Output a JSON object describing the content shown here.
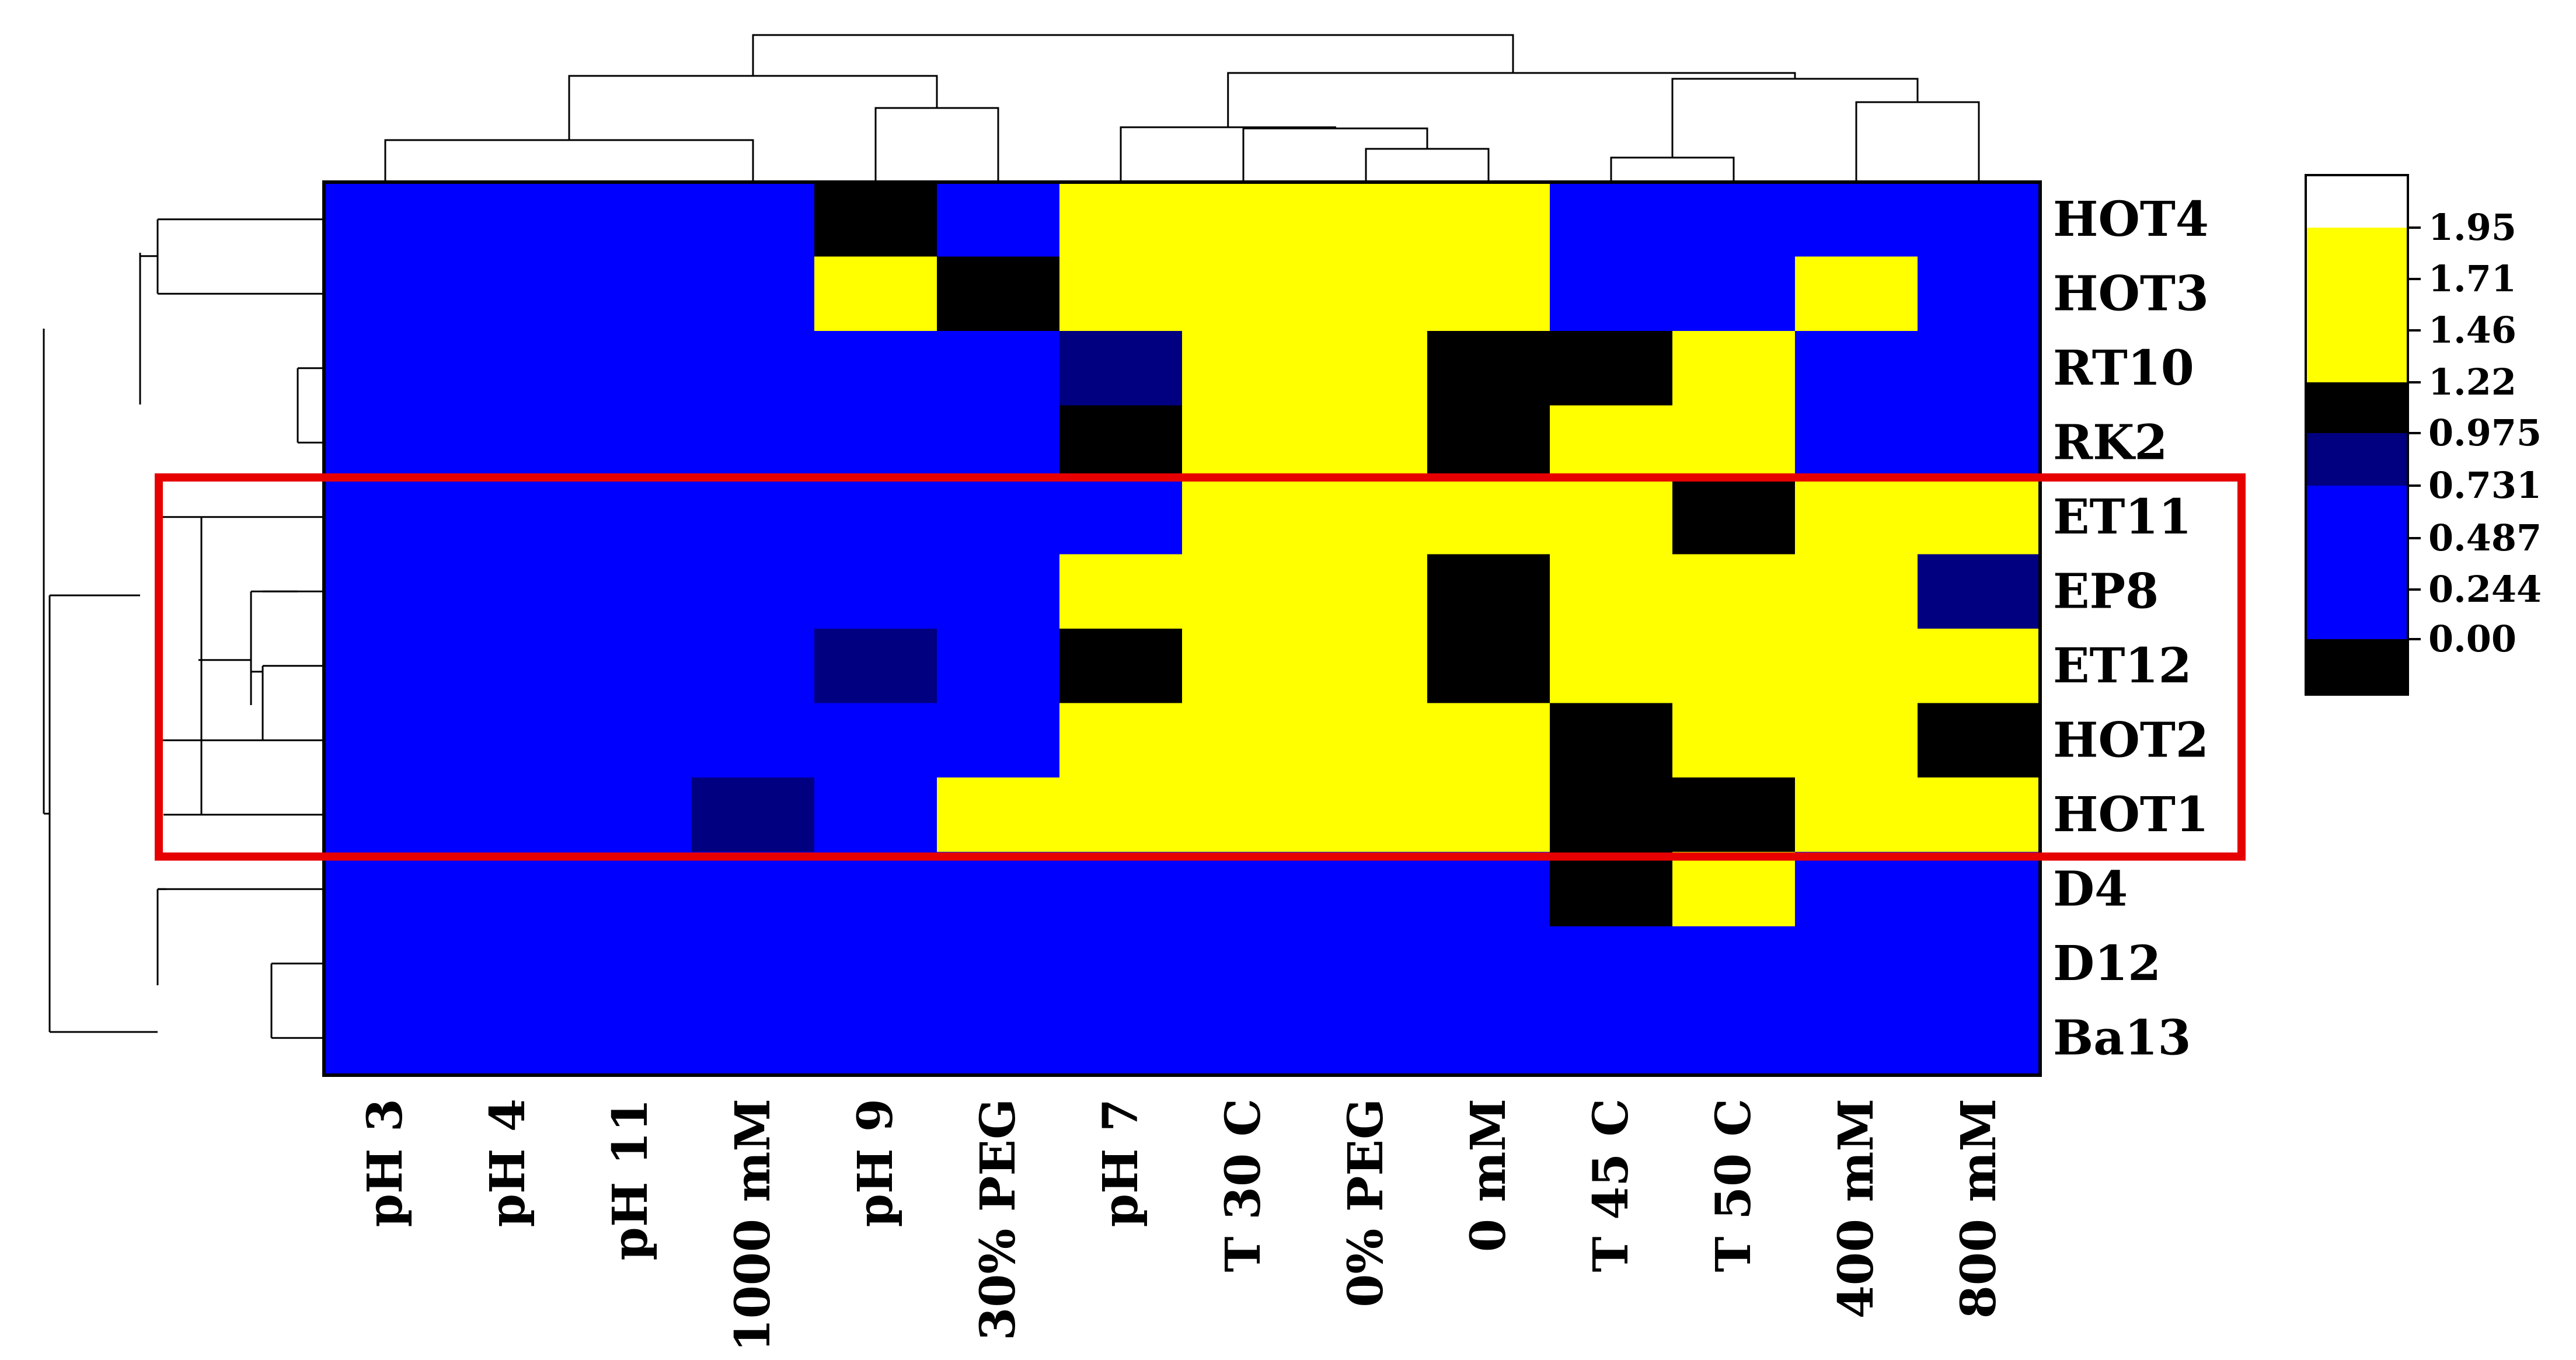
{
  "chart_data": {
    "type": "heatmap",
    "rows": [
      "HOT4",
      "HOT3",
      "RT10",
      "RK2",
      "ET11",
      "EP8",
      "ET12",
      "HOT2",
      "HOT1",
      "D4",
      "D12",
      "Ba13"
    ],
    "columns": [
      "pH 3",
      "pH 4",
      "pH 11",
      "1000 mM",
      "pH 9",
      "30% PEG",
      "pH 7",
      "T 30 C",
      "0% PEG",
      "0 mM",
      "T 45 C",
      "T 50 C",
      "400 mM",
      "800 mM"
    ],
    "values": [
      [
        0.36,
        0.36,
        0.36,
        0.36,
        1.1,
        0.36,
        1.58,
        1.58,
        1.58,
        1.58,
        0.36,
        0.36,
        0.36,
        0.36
      ],
      [
        0.36,
        0.36,
        0.36,
        0.36,
        1.58,
        1.1,
        1.58,
        1.58,
        1.58,
        1.58,
        0.36,
        0.36,
        1.58,
        0.36
      ],
      [
        0.36,
        0.36,
        0.36,
        0.36,
        0.36,
        0.36,
        0.85,
        1.58,
        1.58,
        1.1,
        1.1,
        1.58,
        0.36,
        0.36
      ],
      [
        0.36,
        0.36,
        0.36,
        0.36,
        0.36,
        0.36,
        1.1,
        1.58,
        1.58,
        1.1,
        1.58,
        1.58,
        0.36,
        0.36
      ],
      [
        0.36,
        0.36,
        0.36,
        0.36,
        0.36,
        0.36,
        0.36,
        1.58,
        1.58,
        1.58,
        1.58,
        1.1,
        1.58,
        1.58
      ],
      [
        0.36,
        0.36,
        0.36,
        0.36,
        0.36,
        0.36,
        1.58,
        1.58,
        1.58,
        1.1,
        1.58,
        1.58,
        1.58,
        0.85
      ],
      [
        0.36,
        0.36,
        0.36,
        0.36,
        0.85,
        0.36,
        1.1,
        1.58,
        1.58,
        1.1,
        1.58,
        1.58,
        1.58,
        1.58
      ],
      [
        0.36,
        0.36,
        0.36,
        0.36,
        0.36,
        0.36,
        1.58,
        1.58,
        1.58,
        1.58,
        1.1,
        1.58,
        1.58,
        1.1
      ],
      [
        0.36,
        0.36,
        0.36,
        0.85,
        0.36,
        1.58,
        1.58,
        1.58,
        1.58,
        1.58,
        1.1,
        1.1,
        1.58,
        1.58
      ],
      [
        0.36,
        0.36,
        0.36,
        0.36,
        0.36,
        0.36,
        0.36,
        0.36,
        0.36,
        0.36,
        1.1,
        1.58,
        0.36,
        0.36
      ],
      [
        0.36,
        0.36,
        0.36,
        0.36,
        0.36,
        0.36,
        0.36,
        0.36,
        0.36,
        0.36,
        0.36,
        0.36,
        0.36,
        0.36
      ],
      [
        0.36,
        0.36,
        0.36,
        0.36,
        0.36,
        0.36,
        0.36,
        0.36,
        0.36,
        0.36,
        0.36,
        0.36,
        0.36,
        0.36
      ]
    ],
    "color_scale": {
      "ticks": [
        "1.95",
        "1.71",
        "1.46",
        "1.22",
        "0.975",
        "0.731",
        "0.487",
        "0.244",
        "0.00"
      ],
      "bins": [
        {
          "min": 1.95,
          "max": 2.2,
          "color": "#ffffff"
        },
        {
          "min": 1.22,
          "max": 1.95,
          "color": "#ffff00"
        },
        {
          "min": 0.975,
          "max": 1.22,
          "color": "#000000"
        },
        {
          "min": 0.731,
          "max": 0.975,
          "color": "#000080"
        },
        {
          "min": 0.0,
          "max": 0.731,
          "color": "#0000ff"
        },
        {
          "min": -0.25,
          "max": 0.0,
          "color": "#000000"
        }
      ]
    },
    "highlight_rows": [
      "ET11",
      "EP8",
      "ET12",
      "HOT2",
      "HOT1"
    ],
    "highlight_color": "#e60000",
    "row_dendrogram": true,
    "column_dendrogram": true
  }
}
